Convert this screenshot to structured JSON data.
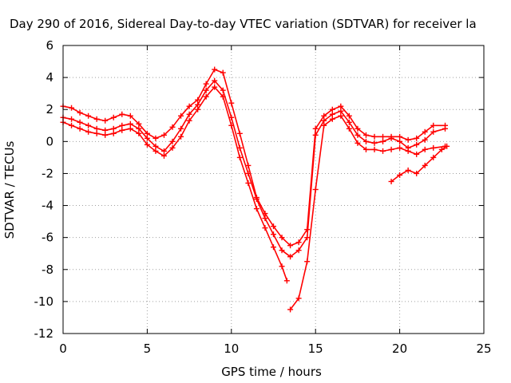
{
  "chart_data": {
    "type": "scatter",
    "title": "Day 290 of 2016, Sidereal Day-to-day VTEC variation (SDTVAR) for receiver la",
    "xlabel": "GPS time / hours",
    "ylabel": "SDTVAR / TECUs",
    "xlim": [
      0,
      25
    ],
    "ylim": [
      -12,
      6
    ],
    "xticks": [
      0,
      5,
      10,
      15,
      20,
      25
    ],
    "yticks": [
      -12,
      -10,
      -8,
      -6,
      -4,
      -2,
      0,
      2,
      4,
      6
    ],
    "grid": true,
    "legend": "none",
    "marker": "+",
    "color": "#ff0000",
    "series": [
      {
        "x": [
          0,
          0.5,
          1,
          1.5,
          2,
          2.5,
          3,
          3.5,
          4,
          4.5,
          5,
          5.5,
          6,
          6.5,
          7,
          7.5,
          8,
          8.5,
          9,
          9.5,
          10,
          10.5,
          11,
          11.5,
          12,
          12.5,
          13,
          13.5,
          14,
          14.5,
          15,
          15.5,
          16,
          16.5,
          17,
          17.5,
          18,
          18.5,
          19,
          19.5,
          20,
          20.5,
          21,
          21.5,
          22,
          22.7
        ],
        "y": [
          2.2,
          2.1,
          1.8,
          1.6,
          1.4,
          1.3,
          1.5,
          1.7,
          1.6,
          1.1,
          0.5,
          0.2,
          0.4,
          0.9,
          1.6,
          2.2,
          2.6,
          3.6,
          4.5,
          4.3,
          2.4,
          0.5,
          -1.5,
          -3.5,
          -4.5,
          -5.3,
          -6.0,
          -6.5,
          -6.3,
          -5.5,
          0.8,
          1.6,
          2.0,
          2.2,
          1.6,
          0.8,
          0.4,
          0.3,
          0.3,
          0.3,
          0.3,
          0.1,
          0.2,
          0.6,
          1.0,
          1.0
        ]
      },
      {
        "x": [
          0,
          0.5,
          1,
          1.5,
          2,
          2.5,
          3,
          3.5,
          4,
          4.5,
          5,
          5.5,
          6,
          6.5,
          7,
          7.5,
          8,
          8.5,
          9,
          9.5,
          10,
          10.5,
          11,
          11.5,
          12,
          12.5,
          13,
          13.5,
          14,
          14.5,
          15,
          15.5,
          16,
          16.5,
          17,
          17.5,
          18,
          18.5,
          19,
          19.5,
          20,
          20.5,
          21,
          21.5,
          22,
          22.7
        ],
        "y": [
          1.5,
          1.4,
          1.2,
          1.0,
          0.8,
          0.7,
          0.8,
          1.0,
          1.1,
          0.8,
          0.2,
          -0.3,
          -0.6,
          0.0,
          0.8,
          1.7,
          2.3,
          3.2,
          3.8,
          3.2,
          1.5,
          -0.4,
          -2.0,
          -3.6,
          -4.8,
          -5.8,
          -6.8,
          -7.2,
          -6.8,
          -6.0,
          0.4,
          1.3,
          1.7,
          1.9,
          1.2,
          0.4,
          0.0,
          -0.1,
          0.0,
          0.2,
          0.0,
          -0.4,
          -0.2,
          0.1,
          0.6,
          0.8
        ]
      },
      {
        "x": [
          0,
          0.5,
          1,
          1.5,
          2,
          2.5,
          3,
          3.5,
          4,
          4.5,
          5,
          5.5,
          6,
          6.5,
          7,
          7.5,
          8,
          8.5,
          9,
          9.5,
          10,
          10.5,
          11,
          11.5,
          12,
          12.5,
          13,
          13.3
        ],
        "y": [
          1.2,
          1.0,
          0.8,
          0.6,
          0.5,
          0.4,
          0.5,
          0.7,
          0.8,
          0.5,
          -0.2,
          -0.6,
          -0.9,
          -0.4,
          0.3,
          1.3,
          2.0,
          2.8,
          3.4,
          2.8,
          1.0,
          -1.0,
          -2.6,
          -4.2,
          -5.4,
          -6.6,
          -7.8,
          -8.7
        ]
      },
      {
        "x": [
          13.5,
          14,
          14.5,
          15,
          15.5,
          16,
          16.5,
          17,
          17.5,
          18,
          18.5,
          19,
          19.5,
          20,
          20.5,
          21,
          21.5,
          22,
          22.7
        ],
        "y": [
          -10.5,
          -9.8,
          -7.5,
          -3.0,
          1.0,
          1.4,
          1.6,
          0.8,
          -0.1,
          -0.5,
          -0.5,
          -0.6,
          -0.5,
          -0.4,
          -0.6,
          -0.8,
          -0.5,
          -0.4,
          -0.3
        ]
      },
      {
        "x": [
          19.5,
          20,
          20.5,
          21,
          21.5,
          22,
          22.5,
          22.8
        ],
        "y": [
          -2.5,
          -2.1,
          -1.8,
          -2.0,
          -1.5,
          -1.0,
          -0.5,
          -0.3
        ]
      }
    ]
  }
}
